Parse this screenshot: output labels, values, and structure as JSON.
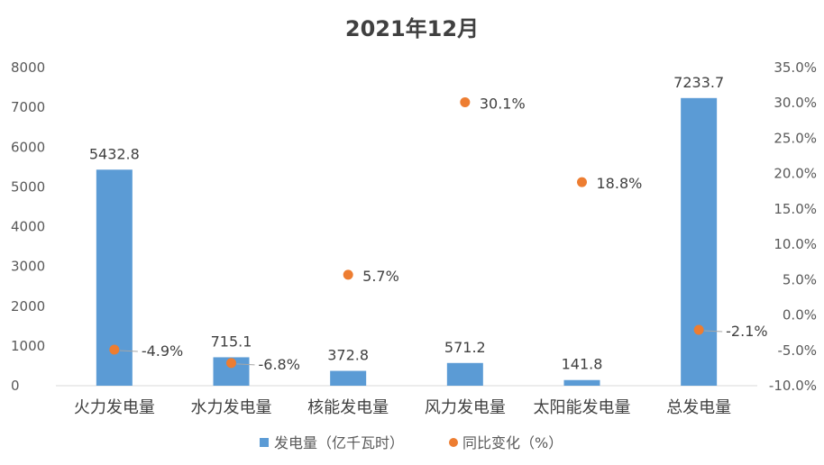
{
  "chart_data": {
    "type": "bar",
    "title": "2021年12月",
    "categories": [
      "火力发电量",
      "水力发电量",
      "核能发电量",
      "风力发电量",
      "太阳能发电量",
      "总发电量"
    ],
    "series": [
      {
        "name": "发电量（亿千瓦时）",
        "type": "bar",
        "axis": "left",
        "color": "#5B9BD5",
        "values": [
          5432.8,
          715.1,
          372.8,
          571.2,
          141.8,
          7233.7
        ],
        "labels": [
          "5432.8",
          "715.1",
          "372.8",
          "571.2",
          "141.8",
          "7233.7"
        ]
      },
      {
        "name": "同比变化（%）",
        "type": "scatter",
        "axis": "right",
        "color": "#ED7D31",
        "values": [
          -4.9,
          -6.8,
          5.7,
          30.1,
          18.8,
          -2.1
        ],
        "labels": [
          "-4.9%",
          "-6.8%",
          "5.7%",
          "30.1%",
          "18.8%",
          "-2.1%"
        ]
      }
    ],
    "y_left": {
      "range": [
        0,
        8000
      ],
      "ticks": [
        "0",
        "1000",
        "2000",
        "3000",
        "4000",
        "5000",
        "6000",
        "7000",
        "8000"
      ]
    },
    "y_right": {
      "range": [
        -10,
        35
      ],
      "ticks": [
        "-10.0%",
        "-5.0%",
        "0.0%",
        "5.0%",
        "10.0%",
        "15.0%",
        "20.0%",
        "25.0%",
        "30.0%",
        "35.0%"
      ]
    },
    "grid": false,
    "legend_position": "bottom"
  }
}
